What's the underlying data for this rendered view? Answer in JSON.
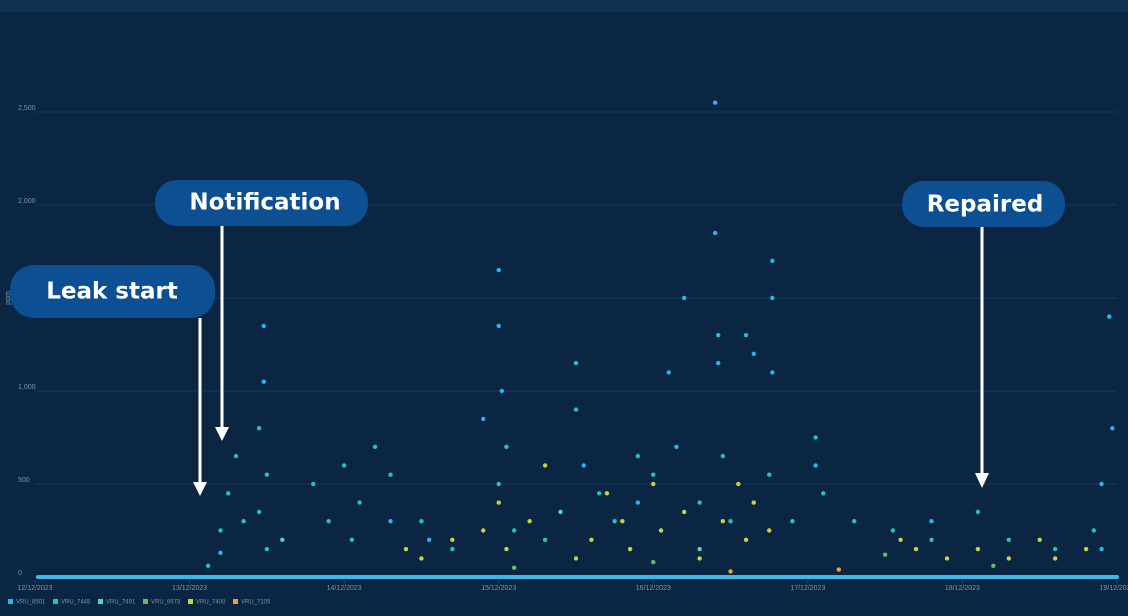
{
  "chart_data": {
    "type": "scatter",
    "y_label": "ppm",
    "annotations": [
      "Leak start",
      "Notification",
      "Repaired"
    ],
    "xlim": [
      12,
      19
    ],
    "xticks": [
      {
        "value": 12,
        "label": "12/12/2023"
      },
      {
        "value": 13,
        "label": "13/12/2023"
      },
      {
        "value": 14,
        "label": "14/12/2023"
      },
      {
        "value": 15,
        "label": "15/12/2023"
      },
      {
        "value": 16,
        "label": "16/12/2023"
      },
      {
        "value": 17,
        "label": "17/12/2023"
      },
      {
        "value": 18,
        "label": "18/12/2023"
      },
      {
        "value": 19,
        "label": "19/12/2023"
      }
    ],
    "ylim": [
      0,
      3000
    ],
    "yticks": [
      0,
      500,
      {
        "value": 1000,
        "label": "1,000"
      },
      {
        "value": 1500,
        "label": "1,500"
      },
      {
        "value": 2000,
        "label": "2,000"
      },
      {
        "value": 2500,
        "label": "2,500"
      }
    ],
    "grid": true,
    "series": [
      {
        "name": "VRU_8501",
        "color": "#2bb5ea",
        "x": [
          13.12,
          13.2,
          13.45,
          13.48,
          13.48,
          14.3,
          14.55,
          14.9,
          15.0,
          15.0,
          15.02,
          15.5,
          15.5,
          15.55,
          15.9,
          16.1,
          16.2,
          16.15,
          16.4,
          16.4,
          16.42,
          16.42,
          16.6,
          16.65,
          16.77,
          16.77,
          16.77,
          17.05,
          17.8,
          18.95,
          18.97,
          18.9,
          18.9
        ],
        "values": [
          60,
          130,
          350,
          1050,
          1350,
          300,
          200,
          850,
          1650,
          1350,
          1000,
          1150,
          900,
          600,
          400,
          1100,
          1500,
          700,
          2550,
          1850,
          1300,
          1150,
          1300,
          1200,
          1700,
          1500,
          1100,
          600,
          300,
          1400,
          800,
          500,
          150
        ]
      },
      {
        "name": "VRU_7445",
        "color": "#26c4b4",
        "x": [
          13.2,
          13.25,
          13.3,
          13.35,
          13.5,
          13.45,
          13.5,
          13.8,
          13.9,
          14.0,
          14.1,
          14.05,
          14.2,
          14.3,
          14.5,
          14.7,
          15.0,
          15.05,
          15.1,
          15.3,
          15.65,
          15.75,
          15.9,
          16.0,
          16.05,
          16.3,
          16.45,
          16.5,
          16.75,
          16.9,
          17.05,
          17.1,
          17.3,
          17.55,
          17.8,
          18.1,
          18.3,
          18.6,
          18.85
        ],
        "values": [
          250,
          450,
          650,
          300,
          550,
          800,
          150,
          500,
          300,
          600,
          400,
          200,
          700,
          550,
          300,
          150,
          500,
          700,
          250,
          200,
          450,
          300,
          650,
          550,
          250,
          400,
          650,
          300,
          550,
          300,
          750,
          450,
          300,
          250,
          200,
          350,
          200,
          150,
          250
        ]
      },
      {
        "name": "VRU_7491",
        "color": "#4fd6c4",
        "x": [
          13.6,
          15.4,
          16.3
        ],
        "values": [
          200,
          350,
          150
        ]
      },
      {
        "name": "VRU_8573",
        "color": "#5cc06a",
        "x": [
          15.1,
          16.0,
          17.5,
          18.2
        ],
        "values": [
          50,
          80,
          120,
          60
        ]
      },
      {
        "name": "VRU_7400",
        "color": "#c9d33c",
        "x": [
          14.4,
          14.5,
          14.7,
          14.9,
          15.0,
          15.05,
          15.2,
          15.3,
          15.5,
          15.6,
          15.7,
          15.8,
          15.85,
          16.0,
          16.05,
          16.2,
          16.3,
          16.45,
          16.55,
          16.6,
          16.65,
          16.75,
          17.6,
          17.7,
          17.9,
          18.1,
          18.3,
          18.5,
          18.6,
          18.8
        ],
        "values": [
          150,
          100,
          200,
          250,
          400,
          150,
          300,
          600,
          100,
          200,
          450,
          300,
          150,
          500,
          250,
          350,
          100,
          300,
          500,
          200,
          400,
          250,
          200,
          150,
          100,
          150,
          100,
          200,
          100,
          150
        ]
      },
      {
        "name": "VRU_7105",
        "color": "#f0a030",
        "x": [
          16.5,
          17.2
        ],
        "values": [
          30,
          40
        ]
      }
    ]
  }
}
